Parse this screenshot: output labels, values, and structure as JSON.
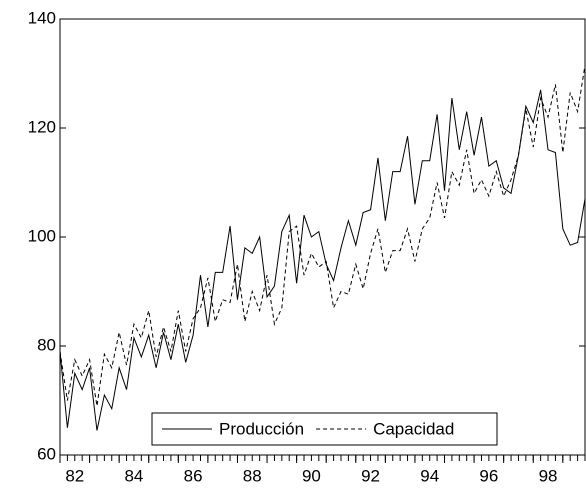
{
  "chart_data": {
    "type": "line",
    "x": [
      82,
      82.25,
      82.5,
      82.75,
      83,
      83.25,
      83.5,
      83.75,
      84,
      84.25,
      84.5,
      84.75,
      85,
      85.25,
      85.5,
      85.75,
      86,
      86.25,
      86.5,
      86.75,
      87,
      87.25,
      87.5,
      87.75,
      88,
      88.25,
      88.5,
      88.75,
      89,
      89.25,
      89.5,
      89.75,
      90,
      90.25,
      90.5,
      90.75,
      91,
      91.25,
      91.5,
      91.75,
      92,
      92.25,
      92.5,
      92.75,
      93,
      93.25,
      93.5,
      93.75,
      94,
      94.25,
      94.5,
      94.75,
      95,
      95.25,
      95.5,
      95.75,
      96,
      96.25,
      96.5,
      96.75,
      97,
      97.25,
      97.5,
      97.75,
      98,
      98.25,
      98.5,
      98.75,
      99,
      99.25,
      99.5,
      99.75
    ],
    "series": [
      {
        "name": "Producción",
        "color": "#000000",
        "dash": "solid",
        "values": [
          79,
          65,
          75,
          72,
          76,
          64.5,
          71,
          68.5,
          76,
          72,
          81.5,
          78,
          82,
          76,
          82.5,
          77.5,
          84,
          77,
          82,
          93,
          83.5,
          93.5,
          93.5,
          102,
          88.5,
          98,
          97,
          100,
          89,
          91,
          101,
          104,
          91.5,
          104,
          100,
          101,
          95,
          92,
          98,
          103,
          98.5,
          104.5,
          105,
          114.5,
          103,
          112,
          112,
          118.5,
          106,
          114,
          114,
          122.5,
          108.5,
          125.5,
          116,
          123,
          115,
          122,
          113,
          114,
          109,
          108,
          115,
          124,
          121,
          127,
          116,
          115.5,
          101.5,
          98.5,
          99,
          107
        ]
      },
      {
        "name": "Capacidad",
        "color": "#000000",
        "dash": "dashed",
        "values": [
          79,
          70,
          77.5,
          74.5,
          77.5,
          69,
          78.5,
          76,
          82.5,
          76.5,
          84,
          81.5,
          86.5,
          78,
          83.5,
          79,
          86.5,
          79,
          85,
          87,
          92.5,
          84.5,
          88.5,
          88,
          95,
          84.5,
          90,
          86.5,
          93,
          84,
          87,
          101,
          102,
          93,
          97,
          94.5,
          95.5,
          87,
          90,
          89.5,
          95,
          90.5,
          97,
          101.5,
          93.5,
          97.5,
          97.5,
          101.5,
          95.5,
          101.5,
          103.5,
          110,
          103.5,
          112,
          109.5,
          116,
          108,
          110.5,
          107.5,
          112,
          107.5,
          110.5,
          115,
          123.5,
          116.5,
          125.5,
          122,
          128,
          115.5,
          126.5,
          123,
          131.5
        ]
      }
    ],
    "xlim": [
      82,
      99.75
    ],
    "xticks": [
      82,
      83,
      84,
      85,
      86,
      87,
      88,
      89,
      90,
      91,
      92,
      93,
      94,
      95,
      96,
      97,
      98,
      99
    ],
    "xticklabels": [
      "82",
      "",
      "84",
      "",
      "86",
      "",
      "88",
      "",
      "90",
      "",
      "92",
      "",
      "94",
      "",
      "96",
      "",
      "98",
      ""
    ],
    "ylim": [
      60,
      140
    ],
    "yticks": [
      60,
      80,
      100,
      120,
      140
    ],
    "legend": "lower center"
  }
}
